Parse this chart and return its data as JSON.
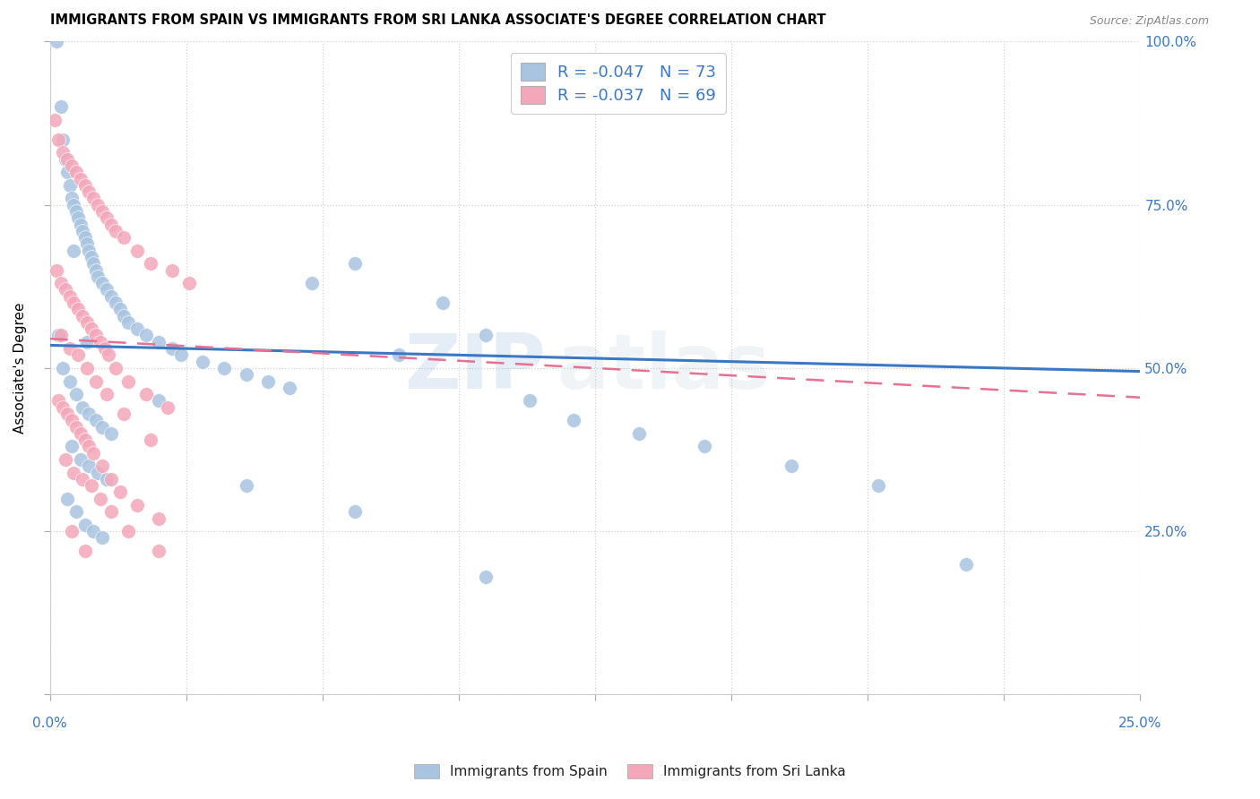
{
  "title": "IMMIGRANTS FROM SPAIN VS IMMIGRANTS FROM SRI LANKA ASSOCIATE'S DEGREE CORRELATION CHART",
  "source": "Source: ZipAtlas.com",
  "ylabel": "Associate's Degree",
  "xlim": [
    0,
    25
  ],
  "ylim": [
    0,
    100
  ],
  "legend1_r": "R = -0.047",
  "legend1_n": "N = 73",
  "legend2_r": "R = -0.037",
  "legend2_n": "N = 69",
  "legend1_color": "#a8c4e0",
  "legend2_color": "#f4a7b9",
  "line1_color": "#3b78c4",
  "line2_color": "#e87090",
  "scatter1_color": "#a8c4e0",
  "scatter2_color": "#f4a7b9",
  "footer_label1": "Immigrants from Spain",
  "footer_label2": "Immigrants from Sri Lanka",
  "spain_trend": [
    53.5,
    49.5
  ],
  "srilanka_trend": [
    54.5,
    45.5
  ],
  "spain_x": [
    0.15,
    0.25,
    0.3,
    0.35,
    0.4,
    0.45,
    0.5,
    0.55,
    0.6,
    0.65,
    0.7,
    0.75,
    0.8,
    0.85,
    0.9,
    0.95,
    1.0,
    1.05,
    1.1,
    1.2,
    1.3,
    1.4,
    1.5,
    1.6,
    1.7,
    1.8,
    2.0,
    2.2,
    2.5,
    2.8,
    3.0,
    3.5,
    4.0,
    4.5,
    5.0,
    5.5,
    6.0,
    7.0,
    8.0,
    9.0,
    10.0,
    11.0,
    12.0,
    13.5,
    15.0,
    17.0,
    19.0,
    21.0,
    0.2,
    0.3,
    0.45,
    0.6,
    0.75,
    0.9,
    1.05,
    1.2,
    1.4,
    0.5,
    0.7,
    0.9,
    1.1,
    1.3,
    0.4,
    0.6,
    0.8,
    1.0,
    1.2,
    2.5,
    4.5,
    7.0,
    10.0,
    0.55,
    0.85
  ],
  "spain_y": [
    100,
    90,
    85,
    82,
    80,
    78,
    76,
    75,
    74,
    73,
    72,
    71,
    70,
    69,
    68,
    67,
    66,
    65,
    64,
    63,
    62,
    61,
    60,
    59,
    58,
    57,
    56,
    55,
    54,
    53,
    52,
    51,
    50,
    49,
    48,
    47,
    63,
    66,
    52,
    60,
    55,
    45,
    42,
    40,
    38,
    35,
    32,
    20,
    55,
    50,
    48,
    46,
    44,
    43,
    42,
    41,
    40,
    38,
    36,
    35,
    34,
    33,
    30,
    28,
    26,
    25,
    24,
    45,
    32,
    28,
    18,
    68,
    54
  ],
  "srilanka_x": [
    0.1,
    0.2,
    0.3,
    0.4,
    0.5,
    0.6,
    0.7,
    0.8,
    0.9,
    1.0,
    1.1,
    1.2,
    1.3,
    1.4,
    1.5,
    1.7,
    2.0,
    2.3,
    2.8,
    3.2,
    0.15,
    0.25,
    0.35,
    0.45,
    0.55,
    0.65,
    0.75,
    0.85,
    0.95,
    1.05,
    1.15,
    1.25,
    1.35,
    1.5,
    1.8,
    2.2,
    2.7,
    0.2,
    0.3,
    0.4,
    0.5,
    0.6,
    0.7,
    0.8,
    0.9,
    1.0,
    1.2,
    1.4,
    1.6,
    2.0,
    2.5,
    0.35,
    0.55,
    0.75,
    0.95,
    1.15,
    1.4,
    1.8,
    2.5,
    0.25,
    0.45,
    0.65,
    0.85,
    1.05,
    1.3,
    1.7,
    2.3,
    0.5,
    0.8
  ],
  "srilanka_y": [
    88,
    85,
    83,
    82,
    81,
    80,
    79,
    78,
    77,
    76,
    75,
    74,
    73,
    72,
    71,
    70,
    68,
    66,
    65,
    63,
    65,
    63,
    62,
    61,
    60,
    59,
    58,
    57,
    56,
    55,
    54,
    53,
    52,
    50,
    48,
    46,
    44,
    45,
    44,
    43,
    42,
    41,
    40,
    39,
    38,
    37,
    35,
    33,
    31,
    29,
    27,
    36,
    34,
    33,
    32,
    30,
    28,
    25,
    22,
    55,
    53,
    52,
    50,
    48,
    46,
    43,
    39,
    25,
    22
  ]
}
